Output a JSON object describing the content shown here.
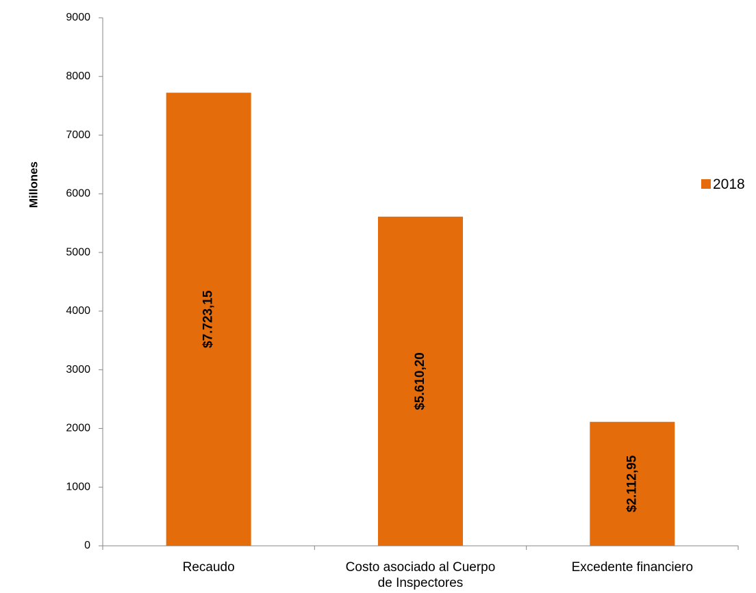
{
  "chart_data": {
    "type": "bar",
    "title": "",
    "xlabel": "",
    "ylabel": "Millones",
    "ylim": [
      0,
      9000
    ],
    "yticks": [
      0,
      1000,
      2000,
      3000,
      4000,
      5000,
      6000,
      7000,
      8000,
      9000
    ],
    "categories": [
      [
        "Recaudo"
      ],
      [
        "Costo asociado al Cuerpo",
        "de Inspectores"
      ],
      [
        "Excedente financiero"
      ]
    ],
    "series": [
      {
        "name": "2018",
        "color": "#E46C0A",
        "values": [
          7723.15,
          5610.2,
          2112.95
        ],
        "labels": [
          "$7.723,15",
          "$5.610,20",
          "$2.112,95"
        ]
      }
    ],
    "legend": {
      "position": "right",
      "entries": [
        "2018"
      ]
    },
    "grid": false
  }
}
